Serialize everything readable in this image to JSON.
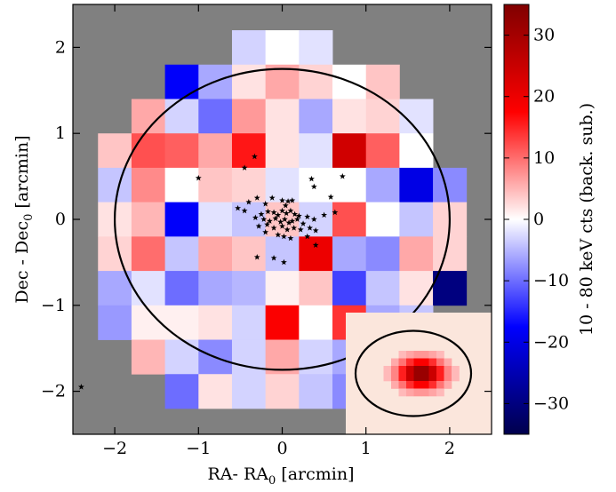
{
  "chart_data": {
    "type": "heatmap",
    "title": "",
    "xlabel": "RA- RA",
    "xlabel_sub": "0",
    "xlabel_unit": " [arcmin]",
    "ylabel": "Dec - Dec",
    "ylabel_sub": "0",
    "ylabel_unit": " [arcmin]",
    "xlim": [
      -2.5,
      2.5
    ],
    "ylim": [
      -2.5,
      2.5
    ],
    "xticks": [
      -2,
      -1,
      0,
      1,
      2
    ],
    "yticks": [
      -2,
      -1,
      0,
      1,
      2
    ],
    "xtick_labels": [
      "−2",
      "−1",
      "0",
      "1",
      "2"
    ],
    "ytick_labels": [
      "−2",
      "−1",
      "0",
      "1",
      "2"
    ],
    "background_color": "#808080",
    "pixel_size_arcmin": 0.4,
    "grid": false,
    "pixels": [
      {
        "x": -0.4,
        "y": 2.0,
        "v": -3
      },
      {
        "x": 0.0,
        "y": 2.0,
        "v": 0
      },
      {
        "x": 0.4,
        "y": 2.0,
        "v": -2
      },
      {
        "x": -1.2,
        "y": 1.6,
        "v": -18
      },
      {
        "x": -0.8,
        "y": 1.6,
        "v": -6
      },
      {
        "x": -0.4,
        "y": 1.6,
        "v": 2
      },
      {
        "x": 0.0,
        "y": 1.6,
        "v": 6
      },
      {
        "x": 0.4,
        "y": 1.6,
        "v": 3
      },
      {
        "x": 0.8,
        "y": 1.6,
        "v": 0
      },
      {
        "x": 1.2,
        "y": 1.6,
        "v": 4
      },
      {
        "x": -1.6,
        "y": 1.2,
        "v": 6
      },
      {
        "x": -1.2,
        "y": 1.2,
        "v": -3
      },
      {
        "x": -0.8,
        "y": 1.2,
        "v": -10
      },
      {
        "x": -0.4,
        "y": 1.2,
        "v": 7
      },
      {
        "x": 0.0,
        "y": 1.2,
        "v": 2
      },
      {
        "x": 0.4,
        "y": 1.2,
        "v": -6
      },
      {
        "x": 0.8,
        "y": 1.2,
        "v": 2
      },
      {
        "x": 1.2,
        "y": 1.2,
        "v": 3
      },
      {
        "x": 1.6,
        "y": 1.2,
        "v": -2
      },
      {
        "x": -2.0,
        "y": 0.8,
        "v": 4
      },
      {
        "x": -1.6,
        "y": 0.8,
        "v": 12
      },
      {
        "x": -1.2,
        "y": 0.8,
        "v": 11
      },
      {
        "x": -0.8,
        "y": 0.8,
        "v": 6
      },
      {
        "x": -0.4,
        "y": 0.8,
        "v": 16
      },
      {
        "x": 0.0,
        "y": 0.8,
        "v": 2
      },
      {
        "x": 0.4,
        "y": 0.8,
        "v": -2
      },
      {
        "x": 0.8,
        "y": 0.8,
        "v": 24
      },
      {
        "x": 1.2,
        "y": 0.8,
        "v": 11
      },
      {
        "x": 1.6,
        "y": 0.8,
        "v": 0
      },
      {
        "x": -2.0,
        "y": 0.4,
        "v": -4
      },
      {
        "x": -1.6,
        "y": 0.4,
        "v": 8
      },
      {
        "x": -1.2,
        "y": 0.4,
        "v": 0
      },
      {
        "x": -0.8,
        "y": 0.4,
        "v": 4
      },
      {
        "x": -0.4,
        "y": 0.4,
        "v": 3
      },
      {
        "x": 0.0,
        "y": 0.4,
        "v": -2
      },
      {
        "x": 0.4,
        "y": 0.4,
        "v": 0
      },
      {
        "x": 0.8,
        "y": 0.4,
        "v": 0
      },
      {
        "x": 1.2,
        "y": 0.4,
        "v": -6
      },
      {
        "x": 1.6,
        "y": 0.4,
        "v": -20
      },
      {
        "x": 2.0,
        "y": 0.4,
        "v": -8
      },
      {
        "x": -2.0,
        "y": 0.0,
        "v": 2
      },
      {
        "x": -1.6,
        "y": 0.0,
        "v": 5
      },
      {
        "x": -1.2,
        "y": 0.0,
        "v": -18
      },
      {
        "x": -0.8,
        "y": 0.0,
        "v": -2
      },
      {
        "x": -0.4,
        "y": 0.0,
        "v": -4
      },
      {
        "x": 0.0,
        "y": 0.0,
        "v": 4
      },
      {
        "x": 0.4,
        "y": 0.0,
        "v": -3
      },
      {
        "x": 0.8,
        "y": 0.0,
        "v": 12
      },
      {
        "x": 1.2,
        "y": 0.0,
        "v": 0
      },
      {
        "x": 1.6,
        "y": 0.0,
        "v": -4
      },
      {
        "x": 2.0,
        "y": 0.0,
        "v": 3
      },
      {
        "x": -2.0,
        "y": -0.4,
        "v": 3
      },
      {
        "x": -1.6,
        "y": -0.4,
        "v": 10
      },
      {
        "x": -1.2,
        "y": -0.4,
        "v": -4
      },
      {
        "x": -0.8,
        "y": -0.4,
        "v": 6
      },
      {
        "x": -0.4,
        "y": -0.4,
        "v": 4
      },
      {
        "x": 0.0,
        "y": -0.4,
        "v": -4
      },
      {
        "x": 0.4,
        "y": -0.4,
        "v": 20
      },
      {
        "x": 0.8,
        "y": -0.4,
        "v": -6
      },
      {
        "x": 1.2,
        "y": -0.4,
        "v": -8
      },
      {
        "x": 1.6,
        "y": -0.4,
        "v": 6
      },
      {
        "x": 2.0,
        "y": -0.4,
        "v": 3
      },
      {
        "x": -2.0,
        "y": -0.8,
        "v": -6
      },
      {
        "x": -1.6,
        "y": -0.8,
        "v": -2
      },
      {
        "x": -1.2,
        "y": -0.8,
        "v": -10
      },
      {
        "x": -0.8,
        "y": -0.8,
        "v": -6
      },
      {
        "x": -0.4,
        "y": -0.8,
        "v": -5
      },
      {
        "x": 0.0,
        "y": -0.8,
        "v": 1
      },
      {
        "x": 0.4,
        "y": -0.8,
        "v": 4
      },
      {
        "x": 0.8,
        "y": -0.8,
        "v": -13
      },
      {
        "x": 1.2,
        "y": -0.8,
        "v": -4
      },
      {
        "x": 1.6,
        "y": -0.8,
        "v": 2
      },
      {
        "x": 2.0,
        "y": -0.8,
        "v": -30
      },
      {
        "x": -2.0,
        "y": -1.2,
        "v": -7
      },
      {
        "x": -1.6,
        "y": -1.2,
        "v": 1
      },
      {
        "x": -1.2,
        "y": -1.2,
        "v": 1
      },
      {
        "x": -0.8,
        "y": -1.2,
        "v": 2
      },
      {
        "x": -0.4,
        "y": -1.2,
        "v": -3
      },
      {
        "x": 0.0,
        "y": -1.2,
        "v": 18
      },
      {
        "x": 0.4,
        "y": -1.2,
        "v": 0
      },
      {
        "x": 0.8,
        "y": -1.2,
        "v": 14
      },
      {
        "x": 1.2,
        "y": -1.2,
        "v": -6
      },
      {
        "x": 1.6,
        "y": -1.2,
        "v": -4
      },
      {
        "x": -1.6,
        "y": -1.6,
        "v": 5
      },
      {
        "x": -1.2,
        "y": -1.6,
        "v": -3
      },
      {
        "x": -0.8,
        "y": -1.6,
        "v": -8
      },
      {
        "x": -0.4,
        "y": -1.6,
        "v": -3
      },
      {
        "x": 0.0,
        "y": -1.6,
        "v": 6
      },
      {
        "x": 0.4,
        "y": -1.6,
        "v": -3
      },
      {
        "x": 0.8,
        "y": -1.6,
        "v": -6
      },
      {
        "x": -1.2,
        "y": -2.0,
        "v": -10
      },
      {
        "x": -0.8,
        "y": -2.0,
        "v": 2
      },
      {
        "x": -0.4,
        "y": -2.0,
        "v": -3
      },
      {
        "x": 0.0,
        "y": -2.0,
        "v": 3
      },
      {
        "x": 0.4,
        "y": -2.0,
        "v": -4
      },
      {
        "x": 0.8,
        "y": -2.0,
        "v": -8
      }
    ],
    "ellipse": {
      "cx": 0.0,
      "cy": 0.0,
      "rx": 2.0,
      "ry": 1.75,
      "color": "#000000"
    },
    "stars": [
      [
        -0.33,
        0.73
      ],
      [
        -0.45,
        0.6
      ],
      [
        -1.0,
        0.48
      ],
      [
        0.35,
        0.47
      ],
      [
        0.72,
        0.5
      ],
      [
        0.38,
        0.38
      ],
      [
        -0.3,
        0.25
      ],
      [
        -0.4,
        0.2
      ],
      [
        0.58,
        0.26
      ],
      [
        -0.12,
        0.25
      ],
      [
        0.0,
        0.22
      ],
      [
        0.07,
        0.21
      ],
      [
        -0.2,
        0.18
      ],
      [
        -0.53,
        0.13
      ],
      [
        -0.45,
        0.1
      ],
      [
        0.12,
        0.22
      ],
      [
        0.04,
        0.16
      ],
      [
        0.5,
        0.05
      ],
      [
        0.63,
        0.08
      ],
      [
        -0.25,
        0.06
      ],
      [
        -0.17,
        0.09
      ],
      [
        -0.1,
        0.08
      ],
      [
        -0.05,
        0.05
      ],
      [
        0.0,
        0.1
      ],
      [
        0.05,
        0.07
      ],
      [
        0.1,
        0.1
      ],
      [
        0.15,
        0.06
      ],
      [
        0.2,
        0.04
      ],
      [
        0.3,
        0.03
      ],
      [
        0.38,
        0.0
      ],
      [
        -0.32,
        0.02
      ],
      [
        -0.22,
        0.0
      ],
      [
        -0.15,
        -0.02
      ],
      [
        -0.08,
        0.01
      ],
      [
        -0.02,
        -0.03
      ],
      [
        0.03,
        0.0
      ],
      [
        0.08,
        -0.04
      ],
      [
        0.12,
        -0.02
      ],
      [
        0.18,
        0.0
      ],
      [
        0.25,
        -0.05
      ],
      [
        -0.28,
        -0.08
      ],
      [
        -0.18,
        -0.06
      ],
      [
        -0.1,
        -0.1
      ],
      [
        0.0,
        -0.08
      ],
      [
        0.06,
        -0.12
      ],
      [
        0.14,
        -0.1
      ],
      [
        0.22,
        -0.12
      ],
      [
        0.33,
        -0.1
      ],
      [
        0.4,
        -0.13
      ],
      [
        -0.05,
        -0.18
      ],
      [
        0.02,
        -0.2
      ],
      [
        0.1,
        -0.22
      ],
      [
        -0.2,
        -0.15
      ],
      [
        0.3,
        -0.2
      ],
      [
        0.4,
        -0.3
      ],
      [
        -0.3,
        -0.44
      ],
      [
        -0.1,
        -0.45
      ],
      [
        0.02,
        -0.5
      ],
      [
        -2.4,
        -1.95
      ]
    ],
    "colorbar": {
      "label": "10 - 80 keV cts (back. sub.)",
      "min": -35,
      "max": 35,
      "ticks": [
        -30,
        -20,
        -10,
        0,
        10,
        20,
        30
      ],
      "tick_labels": [
        "−30",
        "−20",
        "−10",
        "0",
        "10",
        "20",
        "30"
      ],
      "colormap": "seismic"
    },
    "inset": {
      "description_type": "psf-model",
      "grid_size": 12,
      "background_color": "#fbe6dc"
    }
  }
}
